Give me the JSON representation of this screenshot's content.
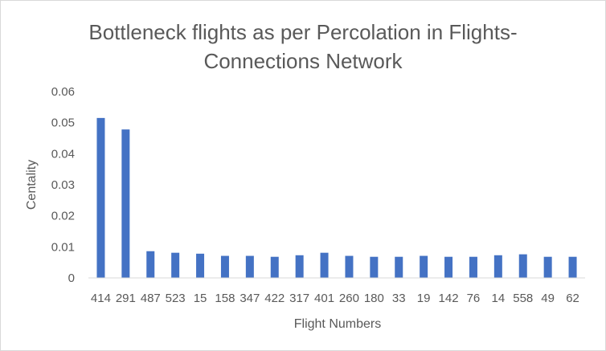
{
  "chart_data": {
    "type": "bar",
    "title_lines": [
      "Bottleneck flights as per Percolation in Flights-",
      "Connections Network"
    ],
    "xlabel": "Flight Numbers",
    "ylabel": "Centality",
    "ylim": [
      0,
      0.06
    ],
    "yticks": [
      "0",
      "0.01",
      "0.02",
      "0.03",
      "0.04",
      "0.05",
      "0.06"
    ],
    "grid": false,
    "legend": "none",
    "categories": [
      "414",
      "291",
      "487",
      "523",
      "15",
      "158",
      "347",
      "422",
      "317",
      "401",
      "260",
      "180",
      "33",
      "19",
      "142",
      "76",
      "14",
      "558",
      "49",
      "62"
    ],
    "values": [
      0.0515,
      0.0478,
      0.0086,
      0.0081,
      0.0078,
      0.0071,
      0.0071,
      0.0068,
      0.0073,
      0.0081,
      0.0071,
      0.0068,
      0.0068,
      0.0071,
      0.0068,
      0.0068,
      0.0073,
      0.0076,
      0.0068,
      0.0068
    ],
    "bar_color": "#4472c4",
    "axis_color": "#d9d9d9"
  }
}
